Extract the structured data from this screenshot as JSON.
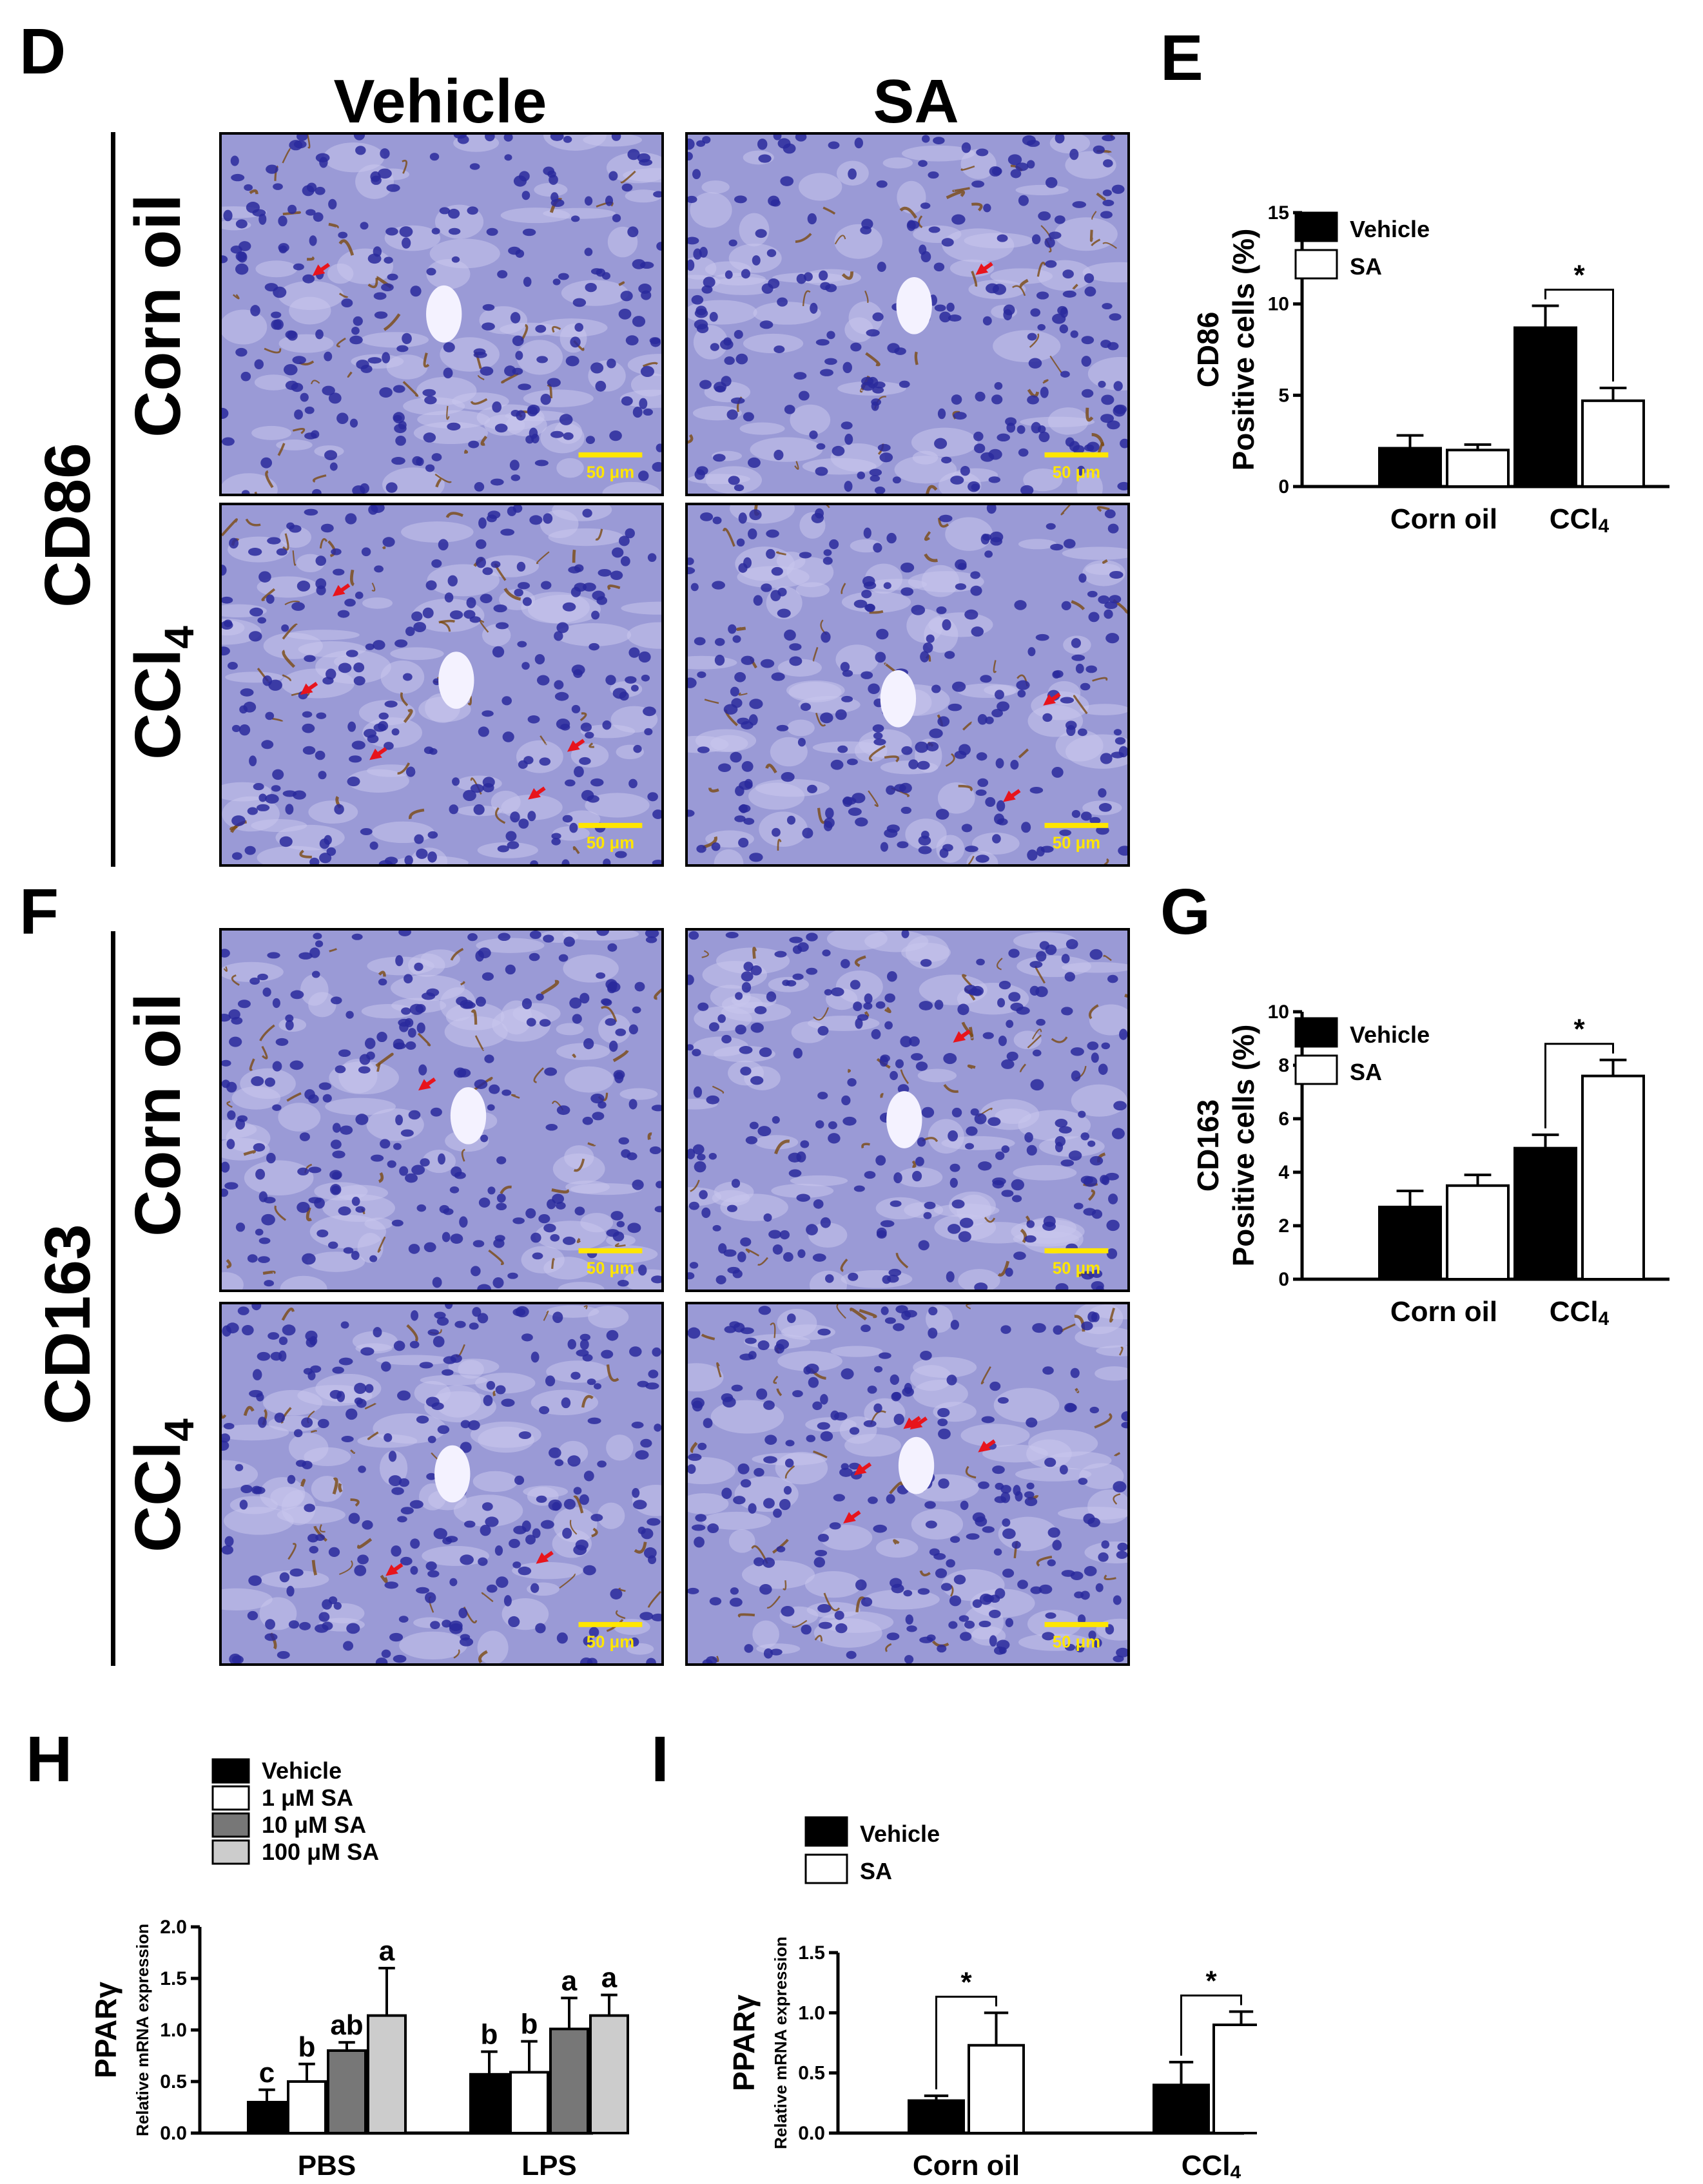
{
  "panels": {
    "D": "D",
    "E": "E",
    "F": "F",
    "G": "G",
    "H": "H",
    "I": "I"
  },
  "micrographs": {
    "columns": [
      "Vehicle",
      "SA"
    ],
    "row_groups": [
      {
        "marker": "CD86",
        "rows": [
          "Corn oil",
          "CCl4"
        ]
      },
      {
        "marker": "CD163",
        "rows": [
          "Corn oil",
          "CCl4"
        ]
      }
    ],
    "scale_bar_label": "50 μm",
    "colors": {
      "tissue": "#9a9ad6",
      "nuclei": "#2a2a9c",
      "stain": "#7a4a12",
      "arrow": "#e8141c",
      "scale": "#ffe600"
    }
  },
  "chart_data": [
    {
      "id": "E",
      "type": "bar",
      "categories": [
        "Corn oil",
        "CCl4"
      ],
      "category_display": [
        "Corn oil",
        "CCl"
      ],
      "category_subscript": [
        "",
        "4"
      ],
      "series": [
        {
          "name": "Vehicle",
          "values": [
            2.1,
            8.7
          ],
          "errors": [
            0.7,
            1.2
          ],
          "color": "#000000"
        },
        {
          "name": "SA",
          "values": [
            2.0,
            4.7
          ],
          "errors": [
            0.3,
            0.7
          ],
          "color": "#ffffff"
        }
      ],
      "ylabel_lines": [
        "CD86",
        "Positive cells (%)"
      ],
      "ylim": [
        0,
        15
      ],
      "yticks": [
        0,
        5,
        10,
        15
      ],
      "legend_position": "top-left",
      "significance": [
        {
          "category": 1,
          "label": "*"
        }
      ]
    },
    {
      "id": "G",
      "type": "bar",
      "categories": [
        "Corn oil",
        "CCl4"
      ],
      "category_display": [
        "Corn oil",
        "CCl"
      ],
      "category_subscript": [
        "",
        "4"
      ],
      "series": [
        {
          "name": "Vehicle",
          "values": [
            2.7,
            4.9
          ],
          "errors": [
            0.6,
            0.5
          ],
          "color": "#000000"
        },
        {
          "name": "SA",
          "values": [
            3.5,
            7.6
          ],
          "errors": [
            0.4,
            0.6
          ],
          "color": "#ffffff"
        }
      ],
      "ylabel_lines": [
        "CD163",
        "Positive cells (%)"
      ],
      "ylim": [
        0,
        10
      ],
      "yticks": [
        0,
        2,
        4,
        6,
        8,
        10
      ],
      "legend_position": "top-left",
      "significance": [
        {
          "category": 1,
          "label": "*"
        }
      ]
    },
    {
      "id": "H",
      "type": "bar",
      "categories": [
        "PBS",
        "LPS"
      ],
      "category_display": [
        "PBS",
        "LPS"
      ],
      "category_subscript": [
        "",
        ""
      ],
      "series": [
        {
          "name": "Vehicle",
          "values": [
            0.3,
            0.57
          ],
          "errors": [
            0.12,
            0.22
          ],
          "color": "#000000",
          "letters": [
            "c",
            "b"
          ]
        },
        {
          "name": "1 μM SA",
          "values": [
            0.5,
            0.59
          ],
          "errors": [
            0.17,
            0.3
          ],
          "color": "#ffffff",
          "letters": [
            "b",
            "b"
          ]
        },
        {
          "name": "10 μM SA",
          "values": [
            0.8,
            1.01
          ],
          "errors": [
            0.08,
            0.3
          ],
          "color": "#777777",
          "letters": [
            "ab",
            "a"
          ]
        },
        {
          "name": "100 μM SA",
          "values": [
            1.14,
            1.14
          ],
          "errors": [
            0.46,
            0.2
          ],
          "color": "#cccccc",
          "letters": [
            "a",
            "a"
          ]
        }
      ],
      "ylabel_lines": [
        "PPARγ",
        "Relative mRNA expression"
      ],
      "ylim": [
        0,
        2.0
      ],
      "yticks": [
        0.0,
        0.5,
        1.0,
        1.5,
        2.0
      ],
      "ytick_labels": [
        "0.0",
        "0.5",
        "1.0",
        "1.5",
        "2.0"
      ],
      "legend_position": "top-left"
    },
    {
      "id": "I",
      "type": "bar",
      "categories": [
        "Corn oil",
        "CCl4"
      ],
      "category_display": [
        "Corn oil",
        "CCl"
      ],
      "category_subscript": [
        "",
        "4"
      ],
      "series": [
        {
          "name": "Vehicle",
          "values": [
            0.27,
            0.4
          ],
          "errors": [
            0.04,
            0.19
          ],
          "color": "#000000"
        },
        {
          "name": "SA",
          "values": [
            0.73,
            0.9
          ],
          "errors": [
            0.27,
            0.11
          ],
          "color": "#ffffff"
        }
      ],
      "ylabel_lines": [
        "PPARγ",
        "Relative mRNA expression"
      ],
      "ylim": [
        0,
        1.5
      ],
      "yticks": [
        0.0,
        0.5,
        1.0,
        1.5
      ],
      "ytick_labels": [
        "0.0",
        "0.5",
        "1.0",
        "1.5"
      ],
      "legend_position": "top-left",
      "significance": [
        {
          "category": 0,
          "label": "*"
        },
        {
          "category": 1,
          "label": "*"
        }
      ]
    }
  ]
}
